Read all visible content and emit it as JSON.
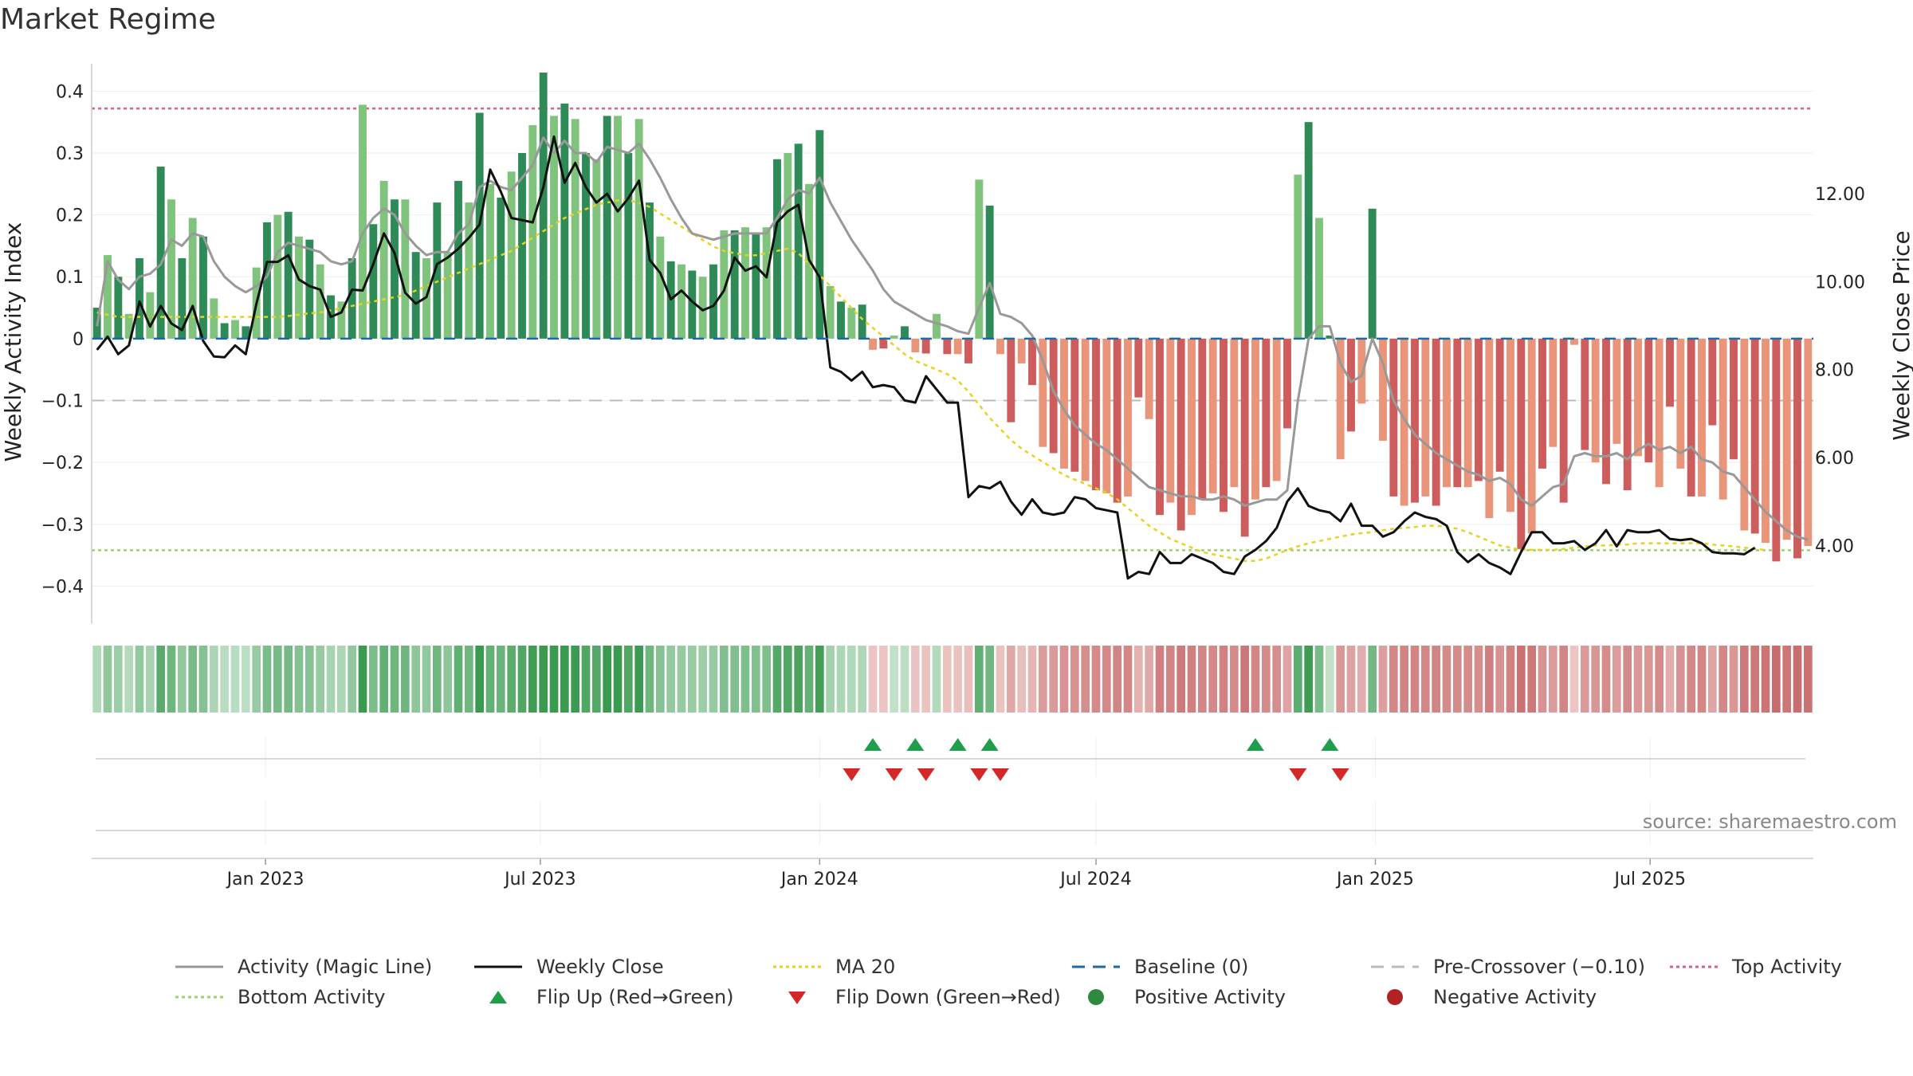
{
  "title": "Market Regime",
  "source": "source: sharemaestro.com",
  "colors": {
    "pos_strong": "#2e8a57",
    "pos_light": "#80c37c",
    "neg_strong": "#cd5c5c",
    "neg_light": "#e8957a",
    "activity": "#999999",
    "close": "#111111",
    "ma": "#e8d21f",
    "baseline": "#1f6aa5",
    "precross": "#bbbbbb",
    "top": "#d9608a",
    "bottom": "#9ed16b",
    "flip_up": "#1e9e4a",
    "flip_down": "#d62728"
  },
  "legend": [
    {
      "label": "Activity (Magic Line)",
      "icon": "grey-line"
    },
    {
      "label": "Weekly Close",
      "icon": "black-line"
    },
    {
      "label": "MA 20",
      "icon": "yellow-dotted-line"
    },
    {
      "label": "Baseline (0)",
      "icon": "blue-dashed-line"
    },
    {
      "label": "Pre-Crossover (−0.10)",
      "icon": "grey-dashed-line"
    },
    {
      "label": "Top Activity",
      "icon": "pink-dotted-line"
    },
    {
      "label": "Bottom Activity",
      "icon": "green-dotted-line"
    },
    {
      "label": "Flip Up (Red→Green)",
      "icon": "green-up-triangle"
    },
    {
      "label": "Flip Down (Green→Red)",
      "icon": "red-down-triangle"
    },
    {
      "label": "Positive Activity",
      "icon": "green-circle"
    },
    {
      "label": "Negative Activity",
      "icon": "red-circle"
    }
  ],
  "chart_data": {
    "type": "bar",
    "title": "Market Regime",
    "ylabel": "Weekly Activity Index",
    "y2label": "Weekly Close Price",
    "ylim": [
      -0.46,
      0.47
    ],
    "y2lim": [
      2.23,
      15.32
    ],
    "yticks": [
      -0.4,
      -0.3,
      -0.2,
      -0.1,
      0,
      0.1,
      0.2,
      0.3,
      0.4
    ],
    "yticklabels": [
      "−0.4",
      "−0.3",
      "−0.2",
      "−0.1",
      "0",
      "0.1",
      "0.2",
      "0.3",
      "0.4"
    ],
    "y2ticks": [
      4,
      6,
      8,
      10,
      12
    ],
    "y2ticklabels": [
      "4.00",
      "6.00",
      "8.00",
      "10.00",
      "12.00"
    ],
    "xticks": [
      "2023-01-01",
      "2023-07-01",
      "2024-01-01",
      "2024-07-01",
      "2025-01-01",
      "2025-07-01"
    ],
    "xticklabels": [
      "Jan 2023",
      "Jul 2023",
      "Jan 2024",
      "Jul 2024",
      "Jan 2025",
      "Jul 2025"
    ],
    "start_date": "2022-09-12",
    "reference_lines": {
      "baseline": 0,
      "pre_crossover": -0.1,
      "top_activity": 0.372,
      "bottom_activity": -0.342
    },
    "activity_index": [
      0.05,
      0.135,
      0.1,
      0.04,
      0.13,
      0.075,
      0.278,
      0.225,
      0.13,
      0.195,
      0.165,
      0.065,
      0.025,
      0.03,
      0.02,
      0.115,
      0.188,
      0.2,
      0.205,
      0.165,
      0.16,
      0.12,
      0.07,
      0.06,
      0.13,
      0.378,
      0.185,
      0.255,
      0.225,
      0.225,
      0.14,
      0.13,
      0.22,
      0.14,
      0.255,
      0.22,
      0.365,
      0.25,
      0.228,
      0.27,
      0.3,
      0.345,
      0.43,
      0.36,
      0.38,
      0.355,
      0.3,
      0.29,
      0.36,
      0.36,
      0.3,
      0.355,
      0.22,
      0.165,
      0.125,
      0.12,
      0.11,
      0.1,
      0.12,
      0.175,
      0.175,
      0.18,
      0.17,
      0.18,
      0.29,
      0.3,
      0.315,
      0.25,
      0.337,
      0.085,
      0.06,
      0.05,
      0.055,
      -0.018,
      -0.016,
      0.005,
      0.02,
      -0.022,
      -0.024,
      0.04,
      -0.025,
      -0.025,
      -0.04,
      0.257,
      0.215,
      -0.025,
      -0.135,
      -0.04,
      -0.075,
      -0.175,
      -0.185,
      -0.21,
      -0.215,
      -0.23,
      -0.245,
      -0.25,
      -0.265,
      -0.255,
      -0.095,
      -0.13,
      -0.285,
      -0.265,
      -0.31,
      -0.285,
      -0.26,
      -0.25,
      -0.28,
      -0.24,
      -0.32,
      -0.26,
      -0.24,
      -0.23,
      -0.145,
      0.265,
      0.35,
      0.195,
      0.005,
      -0.195,
      -0.15,
      -0.105,
      0.21,
      -0.165,
      -0.255,
      -0.27,
      -0.265,
      -0.255,
      -0.27,
      -0.24,
      -0.24,
      -0.24,
      -0.23,
      -0.29,
      -0.215,
      -0.28,
      -0.34,
      -0.315,
      -0.21,
      -0.175,
      -0.265,
      -0.01,
      -0.18,
      -0.2,
      -0.235,
      -0.17,
      -0.245,
      -0.19,
      -0.2,
      -0.24,
      -0.11,
      -0.21,
      -0.255,
      -0.255,
      -0.14,
      -0.26,
      -0.195,
      -0.31,
      -0.315,
      -0.33,
      -0.36,
      -0.325,
      -0.355,
      -0.335
    ],
    "activity_magic_line": [
      0.02,
      0.125,
      0.095,
      0.08,
      0.1,
      0.105,
      0.12,
      0.16,
      0.15,
      0.17,
      0.165,
      0.125,
      0.1,
      0.085,
      0.075,
      0.085,
      0.1,
      0.14,
      0.155,
      0.15,
      0.145,
      0.14,
      0.125,
      0.12,
      0.125,
      0.17,
      0.195,
      0.21,
      0.2,
      0.17,
      0.15,
      0.135,
      0.14,
      0.14,
      0.17,
      0.185,
      0.245,
      0.255,
      0.245,
      0.24,
      0.26,
      0.28,
      0.325,
      0.3,
      0.32,
      0.3,
      0.3,
      0.285,
      0.31,
      0.305,
      0.3,
      0.315,
      0.29,
      0.26,
      0.225,
      0.195,
      0.17,
      0.165,
      0.16,
      0.165,
      0.17,
      0.17,
      0.17,
      0.17,
      0.195,
      0.225,
      0.24,
      0.235,
      0.26,
      0.22,
      0.19,
      0.16,
      0.135,
      0.11,
      0.08,
      0.06,
      0.05,
      0.04,
      0.03,
      0.025,
      0.02,
      0.012,
      0.008,
      0.05,
      0.09,
      0.04,
      0.035,
      0.025,
      0.005,
      -0.035,
      -0.085,
      -0.115,
      -0.14,
      -0.155,
      -0.17,
      -0.18,
      -0.195,
      -0.21,
      -0.225,
      -0.24,
      -0.245,
      -0.25,
      -0.255,
      -0.255,
      -0.26,
      -0.26,
      -0.255,
      -0.26,
      -0.27,
      -0.265,
      -0.26,
      -0.26,
      -0.245,
      -0.1,
      0.0,
      0.02,
      0.02,
      -0.04,
      -0.07,
      -0.06,
      0.0,
      -0.04,
      -0.1,
      -0.13,
      -0.155,
      -0.17,
      -0.185,
      -0.195,
      -0.205,
      -0.215,
      -0.22,
      -0.23,
      -0.225,
      -0.235,
      -0.26,
      -0.27,
      -0.255,
      -0.24,
      -0.235,
      -0.19,
      -0.185,
      -0.19,
      -0.19,
      -0.185,
      -0.195,
      -0.18,
      -0.17,
      -0.18,
      -0.175,
      -0.185,
      -0.175,
      -0.195,
      -0.2,
      -0.215,
      -0.22,
      -0.24,
      -0.26,
      -0.28,
      -0.295,
      -0.31,
      -0.32,
      -0.325
    ],
    "weekly_close": [
      8.45,
      8.75,
      8.35,
      8.55,
      9.55,
      8.98,
      9.45,
      9.05,
      8.9,
      9.45,
      8.65,
      8.3,
      8.28,
      8.55,
      8.35,
      9.5,
      10.45,
      10.45,
      10.6,
      10.05,
      9.9,
      9.82,
      9.2,
      9.3,
      9.82,
      9.8,
      10.4,
      11.1,
      10.65,
      9.75,
      9.5,
      9.65,
      10.4,
      10.55,
      10.75,
      11.0,
      11.3,
      12.55,
      12.05,
      11.45,
      11.4,
      11.35,
      12.15,
      13.3,
      12.25,
      12.7,
      12.15,
      11.8,
      12.0,
      11.6,
      11.9,
      12.3,
      10.5,
      10.2,
      9.6,
      9.8,
      9.55,
      9.35,
      9.45,
      9.8,
      10.55,
      10.25,
      10.35,
      10.1,
      11.35,
      11.6,
      11.75,
      10.5,
      10.1,
      8.05,
      7.95,
      7.75,
      7.95,
      7.6,
      7.65,
      7.6,
      7.3,
      7.25,
      7.85,
      7.55,
      7.25,
      7.25,
      5.1,
      5.35,
      5.3,
      5.45,
      5.0,
      4.7,
      5.05,
      4.75,
      4.7,
      4.75,
      5.1,
      5.05,
      4.85,
      4.8,
      4.75,
      3.25,
      3.4,
      3.35,
      3.85,
      3.6,
      3.6,
      3.8,
      3.7,
      3.6,
      3.4,
      3.35,
      3.75,
      3.9,
      4.1,
      4.4,
      5.0,
      5.3,
      4.9,
      4.8,
      4.75,
      4.55,
      4.95,
      4.45,
      4.45,
      4.2,
      4.3,
      4.55,
      4.75,
      4.65,
      4.6,
      4.45,
      3.85,
      3.62,
      3.8,
      3.6,
      3.5,
      3.35,
      3.85,
      4.3,
      4.3,
      4.05,
      4.05,
      4.1,
      3.9,
      4.05,
      4.35,
      3.98,
      4.35,
      4.3,
      4.3,
      4.35,
      4.15,
      4.12,
      4.15,
      4.05,
      3.85,
      3.82,
      3.82,
      3.8,
      3.95
    ],
    "ma_20": [
      9.3,
      9.25,
      9.2,
      9.2,
      9.2,
      9.2,
      9.2,
      9.2,
      9.2,
      9.2,
      9.2,
      9.2,
      9.2,
      9.2,
      9.2,
      9.2,
      9.2,
      9.2,
      9.22,
      9.25,
      9.28,
      9.3,
      9.35,
      9.4,
      9.45,
      9.5,
      9.55,
      9.6,
      9.65,
      9.7,
      9.8,
      9.9,
      10.0,
      10.1,
      10.2,
      10.3,
      10.4,
      10.5,
      10.6,
      10.7,
      10.85,
      11.0,
      11.15,
      11.3,
      11.45,
      11.55,
      11.65,
      11.75,
      11.8,
      11.85,
      11.85,
      11.8,
      11.7,
      11.55,
      11.4,
      11.25,
      11.1,
      10.95,
      10.8,
      10.7,
      10.65,
      10.6,
      10.6,
      10.65,
      10.7,
      10.75,
      10.65,
      10.4,
      10.15,
      9.9,
      9.65,
      9.4,
      9.15,
      8.95,
      8.75,
      8.55,
      8.35,
      8.2,
      8.1,
      8.0,
      7.9,
      7.75,
      7.5,
      7.2,
      6.9,
      6.65,
      6.4,
      6.2,
      6.05,
      5.9,
      5.75,
      5.6,
      5.5,
      5.4,
      5.3,
      5.2,
      5.05,
      4.85,
      4.65,
      4.45,
      4.3,
      4.15,
      4.05,
      3.95,
      3.85,
      3.8,
      3.75,
      3.7,
      3.65,
      3.65,
      3.7,
      3.8,
      3.9,
      3.98,
      4.05,
      4.1,
      4.15,
      4.2,
      4.25,
      4.28,
      4.3,
      4.35,
      4.38,
      4.4,
      4.42,
      4.45,
      4.45,
      4.42,
      4.38,
      4.3,
      4.2,
      4.1,
      4.0,
      3.95,
      3.9,
      3.9,
      3.9,
      3.9,
      3.92,
      3.95,
      3.98,
      4.0,
      4.0,
      4.02,
      4.02,
      4.05,
      4.05,
      4.05,
      4.05,
      4.05,
      4.05,
      4.05,
      4.02,
      4.0,
      3.98,
      3.95,
      3.92,
      3.9
    ],
    "flip_up_weeks": [
      73,
      77,
      81,
      84,
      109,
      116
    ],
    "flip_down_weeks": [
      71,
      75,
      78,
      83,
      85,
      113,
      117
    ],
    "series": [
      {
        "name": "Activity (Magic Line)"
      },
      {
        "name": "Weekly Close"
      },
      {
        "name": "MA 20"
      }
    ]
  }
}
